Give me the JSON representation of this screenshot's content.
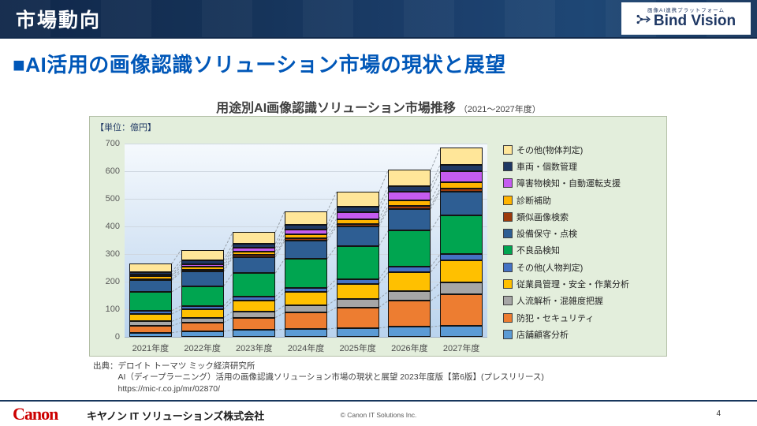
{
  "header": {
    "title": "市場動向",
    "logo": {
      "tagline": "画像AI連携プラットフォーム",
      "name": "Bind Vision"
    }
  },
  "page_title": "■AI活用の画像認識ソリューション市場の現状と展望",
  "chart": {
    "title": "用途別AI画像認識ソリューション市場推移",
    "title_suffix": "（2021～2027年度）",
    "unit_label": "【単位：億円】"
  },
  "chart_data": {
    "type": "bar",
    "stacked": true,
    "title": "用途別AI画像認識ソリューション市場推移（2021～2027年度）",
    "unit": "億円",
    "categories": [
      "2021年度",
      "2022年度",
      "2023年度",
      "2024年度",
      "2025年度",
      "2026年度",
      "2027年度"
    ],
    "series": [
      {
        "name": "店舗顧客分析",
        "color": "#5b9bd5",
        "values": [
          15,
          20,
          25,
          28,
          32,
          36,
          40
        ]
      },
      {
        "name": "防犯・セキュリティ",
        "color": "#ed7d31",
        "values": [
          25,
          32,
          45,
          60,
          75,
          95,
          115
        ]
      },
      {
        "name": "人流解析・混雑度把握",
        "color": "#a6a6a6",
        "values": [
          16,
          18,
          22,
          26,
          30,
          34,
          42
        ]
      },
      {
        "name": "従業員管理・安全・作業分析",
        "color": "#ffc000",
        "values": [
          27,
          30,
          40,
          48,
          55,
          70,
          80
        ]
      },
      {
        "name": "その他(人物判定)",
        "color": "#4472c4",
        "values": [
          12,
          12,
          14,
          16,
          18,
          20,
          22
        ]
      },
      {
        "name": "不良品検知",
        "color": "#00a550",
        "values": [
          68,
          72,
          85,
          105,
          120,
          130,
          140
        ]
      },
      {
        "name": "設備保守・点検",
        "color": "#2e5e93",
        "values": [
          42,
          52,
          58,
          65,
          70,
          79,
          88
        ]
      },
      {
        "name": "類似画像検索",
        "color": "#9c3a0c",
        "values": [
          5,
          8,
          8,
          9,
          9,
          10,
          10
        ]
      },
      {
        "name": "診断補助",
        "color": "#ffb400",
        "values": [
          9,
          11,
          13,
          15,
          18,
          20,
          23
        ]
      },
      {
        "name": "障害物検知・自動運転支援",
        "color": "#c55cf0",
        "values": [
          6,
          9,
          12,
          18,
          25,
          32,
          40
        ]
      },
      {
        "name": "車両・個数管理",
        "color": "#1f3864",
        "values": [
          10,
          13,
          15,
          17,
          19,
          21,
          23
        ]
      },
      {
        "name": "その他(物体判定)",
        "color": "#ffe699",
        "values": [
          30,
          38,
          43,
          48,
          54,
          58,
          62
        ]
      }
    ],
    "totals": [
      265,
      315,
      380,
      455,
      525,
      605,
      685
    ],
    "ylim": [
      0,
      700
    ],
    "yticks": [
      0,
      100,
      200,
      300,
      400,
      500,
      600,
      700
    ],
    "legend_position": "right",
    "legend_order_top_to_bottom": [
      "その他(物体判定)",
      "車両・個数管理",
      "障害物検知・自動運転支援",
      "診断補助",
      "類似画像検索",
      "設備保守・点検",
      "不良品検知",
      "その他(人物判定)",
      "従業員管理・安全・作業分析",
      "人流解析・混雑度把握",
      "防犯・セキュリティ",
      "店舗顧客分析"
    ],
    "grid": true
  },
  "source": {
    "label": "出典：",
    "lines": [
      "デロイト トーマツ ミック経済研究所",
      "AI（ディープラーニング）活用の画像認識ソリューション市場の現状と展望 2023年度版【第6版】(プレスリリース)",
      "https://mic-r.co.jp/mr/02870/"
    ]
  },
  "footer": {
    "logo": "Canon",
    "company": "キヤノン IT ソリューションズ株式会社",
    "copyright": "© Canon IT Solutions Inc.",
    "page": "4"
  }
}
